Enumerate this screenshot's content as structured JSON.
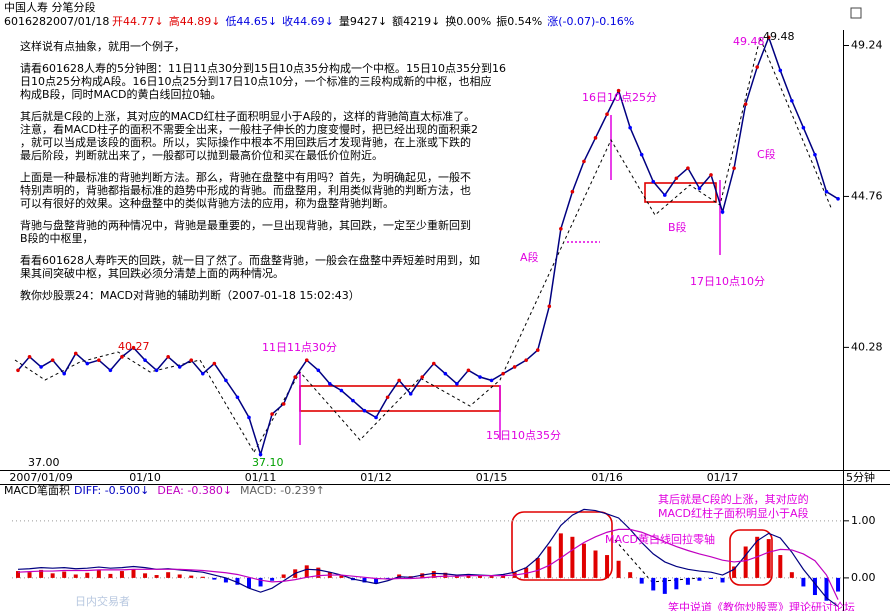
{
  "header": {
    "title": "中国人寿 分笔分段",
    "code": "601628",
    "date": "2007/01/18",
    "stats": [
      {
        "text": "开44.77↓",
        "color": "#e00000"
      },
      {
        "text": "高44.89↓",
        "color": "#e00000"
      },
      {
        "text": "低44.65↓",
        "color": "#0000e0"
      },
      {
        "text": "收44.69↓",
        "color": "#0000e0"
      },
      {
        "text": "量9427↓",
        "color": "#000000"
      },
      {
        "text": "额4219↓",
        "color": "#000000"
      },
      {
        "text": "换0.00%",
        "color": "#000000"
      },
      {
        "text": "振0.54%",
        "color": "#000000"
      },
      {
        "text": "涨(-0.07)-0.16%",
        "color": "#0000e0"
      }
    ]
  },
  "article": {
    "paragraphs": [
      [
        "这样说有点抽象，就用一个例子，"
      ],
      [
        "请看601628人寿的5分钟图：11日11点30分到15日10点35分构成一个中枢。15日10点35分到16",
        "日10点25分构成A段。16日10点25分到17日10点10分，一个标准的三段构成新的中枢，也相应",
        "构成B段，同时MACD的黄白线回拉0轴。"
      ],
      [
        "其后就是C段的上涨，其对应的MACD红柱子面积明显小于A段的，这样的背驰简直太标准了。",
        "注意，看MACD柱子的面积不需要全出来，一般柱子伸长的力度变慢时，把已经出现的面积乘2",
        "，就可以当成是该段的面积。所以，实际操作中根本不用回跌后才发现背驰，在上涨或下跌的",
        "最后阶段，判断就出来了，一般都可以抛到最高价位和买在最低价位附近。"
      ],
      [
        "上面是一种最标准的背驰判断方法。那么，背驰在盘整中有用吗？首先，为明确起见，一般不",
        "特别声明的，背驰都指最标准的趋势中形成的背驰。而盘整用，利用类似背驰的判断方法，也",
        "可以有很好的效果。这种盘整中的类似背驰方法的应用，称为盘整背驰判断。"
      ],
      [
        "背驰与盘整背驰的两种情况中，背驰是最重要的，一旦出现背驰，其回跌，一定至少重新回到",
        "B段的中枢里，"
      ],
      [
        "看看601628人寿昨天的回跌，就一目了然了。而盘整背驰，一般会在盘整中弄短差时用到，如",
        "果其间突破中枢，其回跌必须分清楚上面的两种情况。"
      ],
      [
        "教你炒股票24：MACD对背驰的辅助判断（2007-01-18 15:02:43）"
      ]
    ]
  },
  "chart_data": [
    {
      "type": "line",
      "x_unit": "5分钟",
      "categories": [
        null,
        null,
        "2007/01/09",
        null,
        null,
        null,
        null,
        null,
        null,
        null,
        null,
        "01/10",
        null,
        null,
        null,
        null,
        null,
        null,
        null,
        null,
        null,
        "01/11",
        null,
        null,
        null,
        null,
        null,
        null,
        null,
        null,
        null,
        "01/12",
        null,
        null,
        null,
        null,
        null,
        null,
        null,
        null,
        null,
        "01/15",
        null,
        null,
        null,
        null,
        null,
        null,
        null,
        null,
        null,
        "01/16",
        null,
        null,
        null,
        null,
        null,
        null,
        null,
        null,
        null,
        "01/17",
        null,
        null,
        null,
        null,
        null,
        null,
        null,
        null,
        null,
        null
      ],
      "values": [
        39.6,
        40.0,
        39.7,
        39.9,
        39.5,
        40.1,
        39.8,
        39.9,
        39.6,
        40.0,
        40.27,
        39.9,
        39.6,
        40.0,
        39.7,
        39.9,
        39.5,
        39.8,
        39.3,
        38.8,
        38.2,
        37.1,
        38.3,
        38.6,
        39.4,
        39.9,
        39.6,
        39.2,
        39.0,
        38.7,
        38.4,
        38.2,
        38.8,
        39.3,
        38.9,
        39.4,
        39.8,
        39.5,
        39.2,
        39.6,
        39.4,
        39.3,
        39.5,
        39.7,
        39.9,
        40.2,
        41.5,
        43.8,
        44.9,
        45.8,
        46.5,
        47.2,
        47.9,
        46.8,
        46.0,
        45.2,
        44.8,
        45.3,
        45.6,
        45.0,
        45.4,
        44.3,
        45.6,
        47.5,
        48.6,
        49.48,
        48.5,
        47.6,
        46.8,
        46.0,
        44.9,
        44.69
      ],
      "color": "#000080",
      "ylim": [
        36.7,
        49.7
      ],
      "yticks": [
        40.28,
        44.76,
        49.24
      ],
      "annotations": [
        {
          "text": "40.27",
          "color": "#e00000"
        },
        {
          "text": "37.00",
          "color": "#000000"
        },
        {
          "text": "37.10",
          "color": "#00a000"
        },
        {
          "text": "11日11点30分",
          "color": "#e000e0"
        },
        {
          "text": "15日10点35分",
          "color": "#e000e0"
        },
        {
          "text": "A段",
          "color": "#e000e0"
        },
        {
          "text": "16日10点25分",
          "color": "#e000e0"
        },
        {
          "text": "B段",
          "color": "#e000e0"
        },
        {
          "text": "17日10点10分",
          "color": "#e000e0"
        },
        {
          "text": "C段",
          "color": "#e000e0"
        },
        {
          "text": "49.48",
          "color": "#e000e0"
        },
        {
          "text": "49.48",
          "color": "#000000"
        }
      ]
    },
    {
      "type": "bar",
      "title": "MACD笔面积",
      "indicators": [
        {
          "text": "DIFF: -0.500↓",
          "color": "#0000c0"
        },
        {
          "text": "DEA: -0.380↓",
          "color": "#c000c0"
        },
        {
          "text": "MACD: -0.239↑",
          "color": "#606060"
        }
      ],
      "values": [
        0.12,
        0.1,
        0.14,
        0.08,
        0.11,
        0.06,
        0.09,
        0.13,
        0.07,
        0.12,
        0.15,
        0.08,
        0.05,
        0.1,
        0.06,
        0.04,
        0.02,
        -0.03,
        -0.08,
        -0.12,
        -0.18,
        -0.15,
        -0.05,
        0.06,
        0.15,
        0.22,
        0.18,
        0.1,
        0.04,
        -0.04,
        -0.08,
        -0.1,
        -0.02,
        0.06,
        0.03,
        0.08,
        0.12,
        0.09,
        0.05,
        0.07,
        0.04,
        0.03,
        0.06,
        0.1,
        0.18,
        0.35,
        0.55,
        0.78,
        0.72,
        0.6,
        0.48,
        0.4,
        0.3,
        0.1,
        -0.1,
        -0.22,
        -0.28,
        -0.2,
        -0.12,
        -0.05,
        -0.02,
        -0.08,
        0.2,
        0.55,
        0.72,
        0.68,
        0.4,
        0.1,
        -0.15,
        -0.3,
        -0.4,
        -0.239
      ],
      "up_color": "#e00000",
      "down_color": "#0000ff",
      "lines": [
        {
          "color": "#000080",
          "values": [
            0.15,
            0.16,
            0.18,
            0.17,
            0.18,
            0.16,
            0.17,
            0.19,
            0.17,
            0.18,
            0.2,
            0.18,
            0.15,
            0.16,
            0.14,
            0.12,
            0.1,
            0.05,
            0.0,
            -0.08,
            -0.18,
            -0.25,
            -0.18,
            -0.05,
            0.08,
            0.15,
            0.14,
            0.1,
            0.05,
            -0.02,
            -0.06,
            -0.1,
            -0.05,
            0.02,
            0.01,
            0.05,
            0.08,
            0.07,
            0.05,
            0.06,
            0.05,
            0.04,
            0.06,
            0.1,
            0.18,
            0.35,
            0.62,
            0.92,
            1.1,
            1.2,
            1.18,
            1.12,
            1.05,
            0.85,
            0.62,
            0.42,
            0.28,
            0.2,
            0.15,
            0.12,
            0.1,
            0.05,
            0.15,
            0.4,
            0.65,
            0.78,
            0.7,
            0.45,
            0.15,
            -0.1,
            -0.35,
            -0.5
          ]
        },
        {
          "color": "#c000c0",
          "values": [
            0.1,
            0.11,
            0.12,
            0.12,
            0.13,
            0.13,
            0.13,
            0.14,
            0.14,
            0.14,
            0.15,
            0.15,
            0.15,
            0.15,
            0.15,
            0.14,
            0.13,
            0.11,
            0.09,
            0.06,
            0.01,
            -0.04,
            -0.07,
            -0.06,
            -0.03,
            0.01,
            0.04,
            0.05,
            0.05,
            0.03,
            0.01,
            -0.01,
            -0.02,
            -0.01,
            -0.01,
            0.0,
            0.02,
            0.03,
            0.03,
            0.04,
            0.04,
            0.04,
            0.04,
            0.05,
            0.08,
            0.13,
            0.22,
            0.35,
            0.49,
            0.62,
            0.72,
            0.8,
            0.85,
            0.85,
            0.8,
            0.72,
            0.63,
            0.55,
            0.48,
            0.42,
            0.37,
            0.31,
            0.28,
            0.3,
            0.37,
            0.45,
            0.5,
            0.49,
            0.42,
            0.3,
            0.05,
            -0.38
          ]
        }
      ],
      "ylim": [
        -0.58,
        1.54
      ],
      "yticks": [
        {
          "value": 0,
          "label": "0.00"
        },
        {
          "value": 1,
          "label": "1.00"
        }
      ],
      "annotations": [
        {
          "text": "其后就是C段的上涨，其对应的",
          "color": "#e000e0"
        },
        {
          "text": "MACD红柱子面积明显小于A段",
          "color": "#e000e0"
        },
        {
          "text": "MACD黄白线回拉零轴",
          "color": "#e000e0"
        },
        {
          "text": "日内交易者",
          "color": "#b8c8e0"
        },
        {
          "text": "笑中说道《教你炒股票》理论研讨论坛",
          "color": "#e000e0"
        }
      ]
    }
  ]
}
